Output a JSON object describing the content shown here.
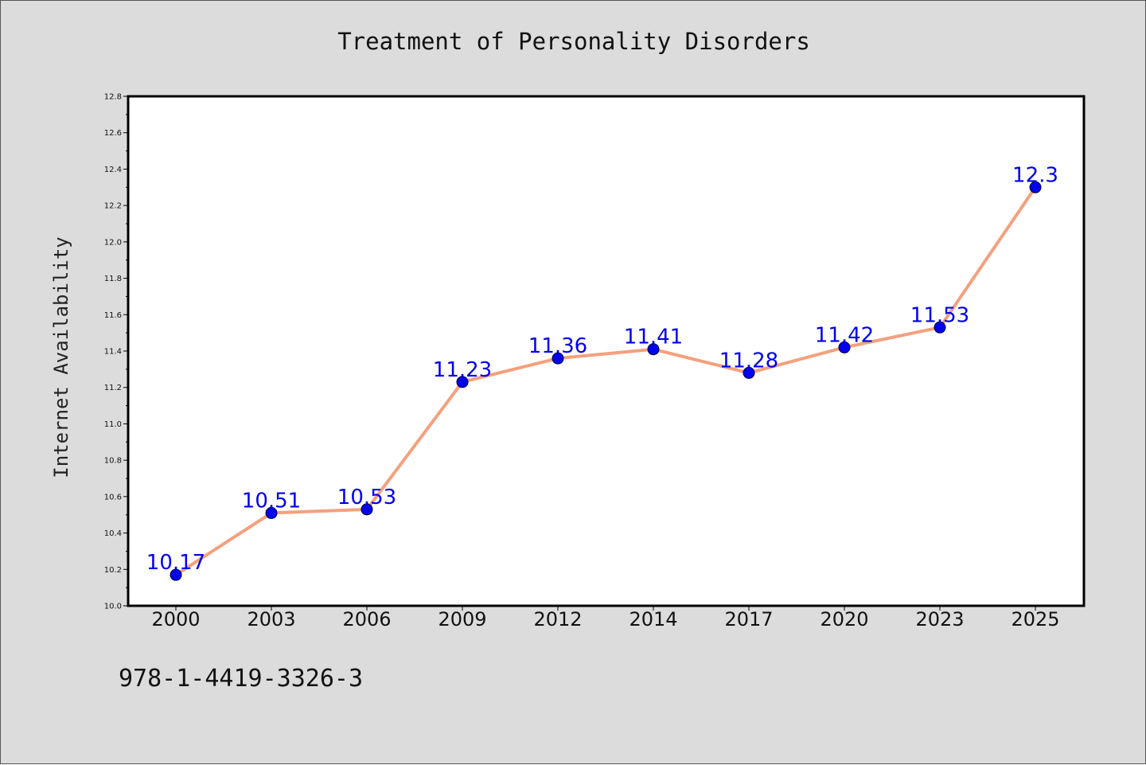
{
  "page": {
    "background": "#dcdcdc",
    "footer_code": "978-1-4419-3326-3"
  },
  "chart_data": {
    "type": "line",
    "title": "Treatment of Personality Disorders",
    "xlabel": "",
    "ylabel": "Internet Availability",
    "categories": [
      "2000",
      "2003",
      "2006",
      "2009",
      "2012",
      "2014",
      "2017",
      "2020",
      "2023",
      "2025"
    ],
    "series": [
      {
        "values": [
          10.17,
          10.51,
          10.53,
          11.23,
          11.36,
          11.41,
          11.28,
          11.42,
          11.53,
          12.3
        ],
        "value_labels": [
          "10.17",
          "10.51",
          "10.53",
          "11.23",
          "11.36",
          "11.41",
          "11.28",
          "11.42",
          "11.53",
          "12.3"
        ],
        "line_color": "#f4a07e",
        "marker_color": "#0000ee",
        "label_color": "#0000ee"
      }
    ],
    "ylim": [
      10.0,
      12.8
    ],
    "yticks": [
      "10.0",
      "10.2",
      "10.4",
      "10.6",
      "10.8",
      "11.0",
      "11.2",
      "11.4",
      "11.6",
      "11.8",
      "12.0",
      "12.2",
      "12.4",
      "12.6",
      "12.8"
    ],
    "grid": false,
    "legend": "none"
  }
}
